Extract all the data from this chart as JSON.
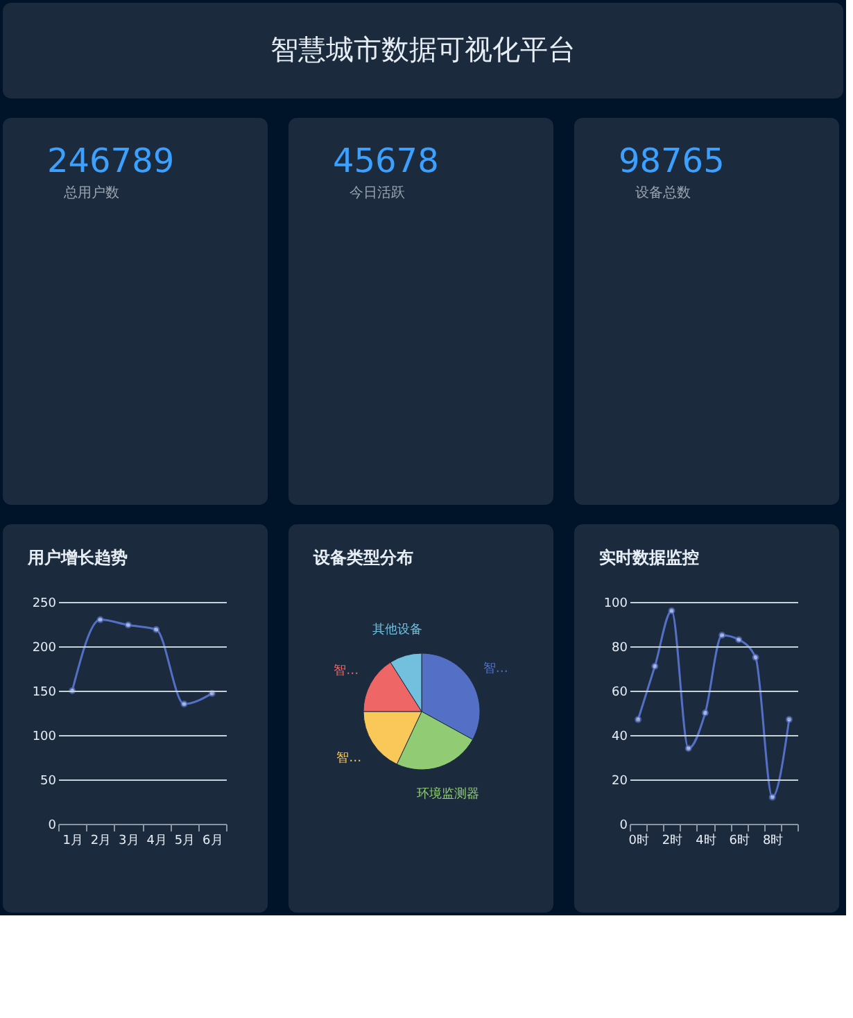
{
  "chart_data": [
    {
      "type": "other",
      "title": "智慧城市数据可视化平台"
    },
    {
      "type": "other",
      "annotations": [
        "246789",
        "总用户数"
      ]
    },
    {
      "type": "other",
      "annotations": [
        "45678",
        "今日活跃"
      ]
    },
    {
      "type": "other",
      "annotations": [
        "98765",
        "设备总数"
      ]
    },
    {
      "type": "line",
      "title": "用户增长趋势",
      "categories": [
        "1月",
        "2月",
        "3月",
        "4月",
        "5月",
        "6月"
      ],
      "series": [
        {
          "color": "#5470c6",
          "values": [
            150,
            230,
            224,
            219,
            135,
            147
          ]
        }
      ],
      "ylim": [
        0,
        250
      ],
      "yticks": [
        0,
        50,
        100,
        150,
        200,
        250
      ],
      "grid": "y",
      "marker": "circle"
    },
    {
      "type": "pie",
      "title": "设备类型分布",
      "categories": [
        "智…",
        "环境监测器",
        "智…",
        "智…",
        "其他设备"
      ],
      "values": [
        33,
        24,
        18,
        16,
        9
      ],
      "colors": [
        "#5470c6",
        "#91cc75",
        "#fac858",
        "#ee6666",
        "#73c0de"
      ]
    },
    {
      "type": "line",
      "title": "实时数据监控",
      "categories": [
        "0时",
        null,
        "2时",
        null,
        "4时",
        null,
        "6时",
        null,
        "8时",
        null
      ],
      "series": [
        {
          "color": "#5470c6",
          "values": [
            47,
            71,
            96,
            34,
            50,
            85,
            83,
            75,
            12,
            47
          ]
        }
      ],
      "ylim": [
        0,
        100
      ],
      "yticks": [
        0,
        20,
        40,
        60,
        80,
        100
      ],
      "grid": "y",
      "marker": "circle"
    }
  ]
}
